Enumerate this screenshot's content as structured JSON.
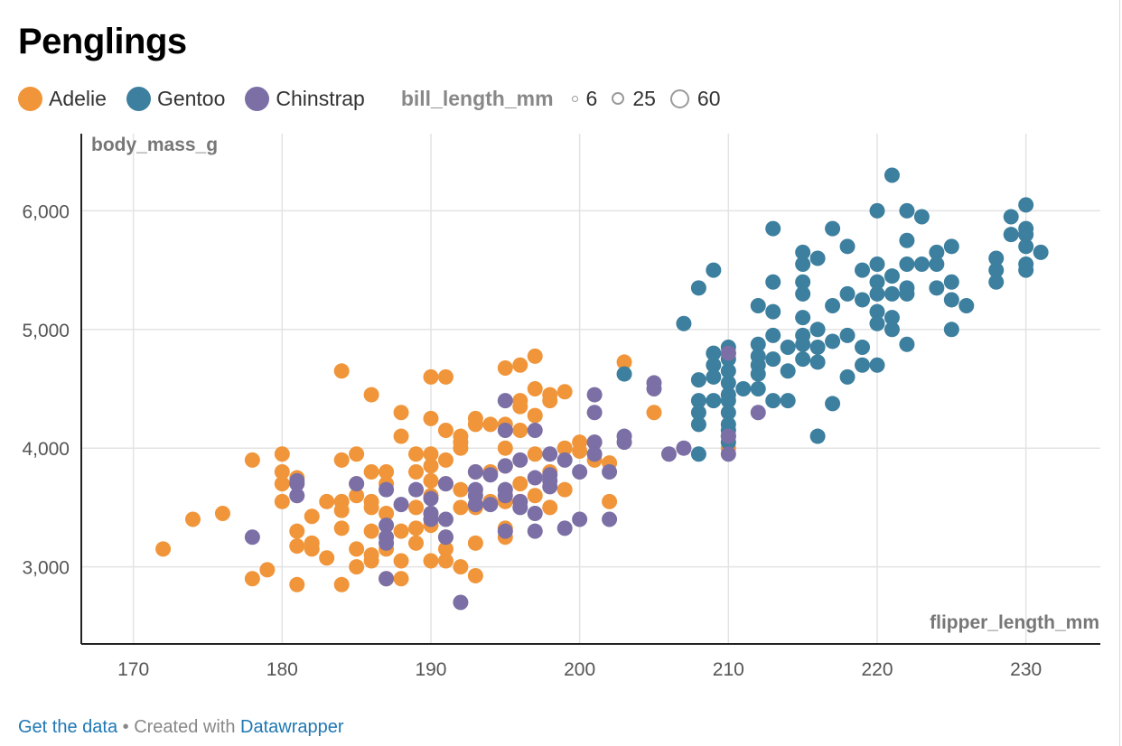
{
  "title": "Penglings",
  "legend": {
    "items": [
      {
        "label": "Adelie",
        "color": "#f0953a"
      },
      {
        "label": "Gentoo",
        "color": "#3d7f9e"
      },
      {
        "label": "Chinstrap",
        "color": "#7b6fa5"
      }
    ],
    "size_title": "bill_length_mm",
    "sizes": [
      "6",
      "25",
      "60"
    ]
  },
  "footer": {
    "data_link": "Get the data",
    "separator": " • ",
    "created_text": "Created with ",
    "tool_link": "Datawrapper"
  },
  "chart_data": {
    "type": "scatter",
    "title": "Penglings",
    "xlabel": "flipper_length_mm",
    "ylabel": "body_mass_g",
    "xlim": [
      166.5,
      235
    ],
    "ylim": [
      2350,
      6650
    ],
    "x_ticks": [
      170,
      180,
      190,
      200,
      210,
      220,
      230
    ],
    "y_ticks": [
      3000,
      4000,
      5000,
      6000
    ],
    "y_tick_labels": [
      "3,000",
      "4,000",
      "5,000",
      "6,000"
    ],
    "grid": true,
    "series": [
      {
        "name": "Adelie",
        "color": "#f0953a",
        "points": [
          [
            172,
            3150
          ],
          [
            174,
            3400
          ],
          [
            176,
            3450
          ],
          [
            178,
            3900
          ],
          [
            178,
            2900
          ],
          [
            179,
            2975
          ],
          [
            180,
            3950
          ],
          [
            180,
            3800
          ],
          [
            180,
            3700
          ],
          [
            180,
            3550
          ],
          [
            181,
            3750
          ],
          [
            181,
            3300
          ],
          [
            181,
            3175
          ],
          [
            181,
            2850
          ],
          [
            182,
            3425
          ],
          [
            182,
            3200
          ],
          [
            182,
            3150
          ],
          [
            183,
            3550
          ],
          [
            183,
            3075
          ],
          [
            184,
            4650
          ],
          [
            184,
            3900
          ],
          [
            184,
            3550
          ],
          [
            184,
            3475
          ],
          [
            184,
            3325
          ],
          [
            184,
            2850
          ],
          [
            185,
            3950
          ],
          [
            185,
            3700
          ],
          [
            185,
            3600
          ],
          [
            185,
            3150
          ],
          [
            185,
            3000
          ],
          [
            186,
            4450
          ],
          [
            186,
            3800
          ],
          [
            186,
            3550
          ],
          [
            186,
            3500
          ],
          [
            186,
            3300
          ],
          [
            186,
            3100
          ],
          [
            186,
            3050
          ],
          [
            187,
            3800
          ],
          [
            187,
            3700
          ],
          [
            187,
            3450
          ],
          [
            187,
            3150
          ],
          [
            187,
            2900
          ],
          [
            188,
            4300
          ],
          [
            188,
            4100
          ],
          [
            188,
            3300
          ],
          [
            188,
            3050
          ],
          [
            188,
            2900
          ],
          [
            189,
            3950
          ],
          [
            189,
            3800
          ],
          [
            189,
            3500
          ],
          [
            189,
            3325
          ],
          [
            189,
            3200
          ],
          [
            190,
            4600
          ],
          [
            190,
            4250
          ],
          [
            190,
            3950
          ],
          [
            190,
            3850
          ],
          [
            190,
            3725
          ],
          [
            190,
            3600
          ],
          [
            190,
            3450
          ],
          [
            190,
            3350
          ],
          [
            190,
            3050
          ],
          [
            191,
            4600
          ],
          [
            191,
            4150
          ],
          [
            191,
            3900
          ],
          [
            191,
            3700
          ],
          [
            191,
            3250
          ],
          [
            191,
            3150
          ],
          [
            191,
            3050
          ],
          [
            192,
            4100
          ],
          [
            192,
            4050
          ],
          [
            192,
            4000
          ],
          [
            192,
            3650
          ],
          [
            192,
            3500
          ],
          [
            192,
            3000
          ],
          [
            193,
            4250
          ],
          [
            193,
            4200
          ],
          [
            193,
            3800
          ],
          [
            193,
            3500
          ],
          [
            193,
            3200
          ],
          [
            193,
            2925
          ],
          [
            194,
            4200
          ],
          [
            194,
            3800
          ],
          [
            194,
            3550
          ],
          [
            195,
            4675
          ],
          [
            195,
            4200
          ],
          [
            195,
            4000
          ],
          [
            195,
            3850
          ],
          [
            195,
            3550
          ],
          [
            195,
            3325
          ],
          [
            195,
            3250
          ],
          [
            196,
            4700
          ],
          [
            196,
            4400
          ],
          [
            196,
            4350
          ],
          [
            196,
            4150
          ],
          [
            196,
            3700
          ],
          [
            196,
            3550
          ],
          [
            197,
            4775
          ],
          [
            197,
            4500
          ],
          [
            197,
            4275
          ],
          [
            197,
            3950
          ],
          [
            197,
            3600
          ],
          [
            198,
            4450
          ],
          [
            198,
            4400
          ],
          [
            198,
            3800
          ],
          [
            198,
            3500
          ],
          [
            199,
            4475
          ],
          [
            199,
            4000
          ],
          [
            199,
            3650
          ],
          [
            200,
            4050
          ],
          [
            200,
            3975
          ],
          [
            201,
            4050
          ],
          [
            201,
            3900
          ],
          [
            202,
            3875
          ],
          [
            202,
            3550
          ],
          [
            203,
            4725
          ],
          [
            205,
            4300
          ],
          [
            210,
            4000
          ]
        ]
      },
      {
        "name": "Gentoo",
        "color": "#3d7f9e",
        "points": [
          [
            203,
            4625
          ],
          [
            207,
            5050
          ],
          [
            208,
            5350
          ],
          [
            208,
            4575
          ],
          [
            208,
            4400
          ],
          [
            208,
            4300
          ],
          [
            208,
            4200
          ],
          [
            208,
            3950
          ],
          [
            209,
            5500
          ],
          [
            209,
            4800
          ],
          [
            209,
            4700
          ],
          [
            209,
            4600
          ],
          [
            209,
            4400
          ],
          [
            210,
            4850
          ],
          [
            210,
            4800
          ],
          [
            210,
            4750
          ],
          [
            210,
            4650
          ],
          [
            210,
            4550
          ],
          [
            210,
            4450
          ],
          [
            210,
            4400
          ],
          [
            210,
            4300
          ],
          [
            210,
            4200
          ],
          [
            210,
            4150
          ],
          [
            210,
            4100
          ],
          [
            210,
            4050
          ],
          [
            211,
            4500
          ],
          [
            212,
            5200
          ],
          [
            212,
            4875
          ],
          [
            212,
            4775
          ],
          [
            212,
            4700
          ],
          [
            212,
            4625
          ],
          [
            212,
            4500
          ],
          [
            213,
            5850
          ],
          [
            213,
            5400
          ],
          [
            213,
            5150
          ],
          [
            213,
            4950
          ],
          [
            213,
            4750
          ],
          [
            213,
            4400
          ],
          [
            214,
            4850
          ],
          [
            214,
            4650
          ],
          [
            214,
            4400
          ],
          [
            215,
            5650
          ],
          [
            215,
            5550
          ],
          [
            215,
            5400
          ],
          [
            215,
            5300
          ],
          [
            215,
            5100
          ],
          [
            215,
            4950
          ],
          [
            215,
            4875
          ],
          [
            215,
            4750
          ],
          [
            216,
            5600
          ],
          [
            216,
            5000
          ],
          [
            216,
            4850
          ],
          [
            216,
            4725
          ],
          [
            216,
            4100
          ],
          [
            217,
            5850
          ],
          [
            217,
            5200
          ],
          [
            217,
            4900
          ],
          [
            217,
            4375
          ],
          [
            218,
            5700
          ],
          [
            218,
            5300
          ],
          [
            218,
            4950
          ],
          [
            218,
            4600
          ],
          [
            219,
            5500
          ],
          [
            219,
            5250
          ],
          [
            219,
            4850
          ],
          [
            219,
            4700
          ],
          [
            220,
            6000
          ],
          [
            220,
            5550
          ],
          [
            220,
            5400
          ],
          [
            220,
            5300
          ],
          [
            220,
            5150
          ],
          [
            220,
            5050
          ],
          [
            220,
            4700
          ],
          [
            221,
            6300
          ],
          [
            221,
            5450
          ],
          [
            221,
            5300
          ],
          [
            221,
            5100
          ],
          [
            221,
            5000
          ],
          [
            222,
            6000
          ],
          [
            222,
            5750
          ],
          [
            222,
            5550
          ],
          [
            222,
            5350
          ],
          [
            222,
            5300
          ],
          [
            222,
            4875
          ],
          [
            223,
            5950
          ],
          [
            223,
            5550
          ],
          [
            224,
            5650
          ],
          [
            224,
            5550
          ],
          [
            224,
            5350
          ],
          [
            225,
            5700
          ],
          [
            225,
            5400
          ],
          [
            225,
            5250
          ],
          [
            225,
            5000
          ],
          [
            226,
            5200
          ],
          [
            228,
            5600
          ],
          [
            228,
            5500
          ],
          [
            228,
            5400
          ],
          [
            229,
            5950
          ],
          [
            229,
            5800
          ],
          [
            230,
            6050
          ],
          [
            230,
            5850
          ],
          [
            230,
            5800
          ],
          [
            230,
            5700
          ],
          [
            230,
            5550
          ],
          [
            230,
            5500
          ],
          [
            231,
            5650
          ]
        ]
      },
      {
        "name": "Chinstrap",
        "color": "#7b6fa5",
        "points": [
          [
            178,
            3250
          ],
          [
            181,
            3725
          ],
          [
            181,
            3700
          ],
          [
            181,
            3600
          ],
          [
            185,
            3700
          ],
          [
            187,
            3650
          ],
          [
            187,
            3350
          ],
          [
            187,
            3250
          ],
          [
            187,
            3200
          ],
          [
            187,
            2900
          ],
          [
            188,
            3525
          ],
          [
            189,
            3650
          ],
          [
            190,
            3575
          ],
          [
            190,
            3450
          ],
          [
            190,
            3400
          ],
          [
            191,
            3700
          ],
          [
            191,
            3400
          ],
          [
            191,
            3250
          ],
          [
            192,
            2700
          ],
          [
            193,
            3800
          ],
          [
            193,
            3650
          ],
          [
            193,
            3600
          ],
          [
            193,
            3525
          ],
          [
            194,
            3775
          ],
          [
            194,
            3525
          ],
          [
            195,
            4400
          ],
          [
            195,
            4150
          ],
          [
            195,
            3850
          ],
          [
            195,
            3650
          ],
          [
            195,
            3600
          ],
          [
            195,
            3300
          ],
          [
            196,
            3900
          ],
          [
            196,
            3550
          ],
          [
            196,
            3500
          ],
          [
            197,
            4150
          ],
          [
            197,
            3750
          ],
          [
            197,
            3450
          ],
          [
            197,
            3300
          ],
          [
            198,
            3950
          ],
          [
            198,
            3775
          ],
          [
            198,
            3725
          ],
          [
            198,
            3675
          ],
          [
            199,
            3900
          ],
          [
            199,
            3325
          ],
          [
            200,
            3800
          ],
          [
            200,
            3400
          ],
          [
            201,
            4450
          ],
          [
            201,
            4300
          ],
          [
            201,
            4050
          ],
          [
            201,
            3950
          ],
          [
            202,
            3800
          ],
          [
            202,
            3400
          ],
          [
            203,
            4100
          ],
          [
            203,
            4050
          ],
          [
            205,
            4550
          ],
          [
            205,
            4500
          ],
          [
            206,
            3950
          ],
          [
            207,
            4000
          ],
          [
            210,
            4800
          ],
          [
            210,
            4100
          ],
          [
            210,
            3950
          ],
          [
            212,
            4300
          ]
        ]
      }
    ]
  }
}
